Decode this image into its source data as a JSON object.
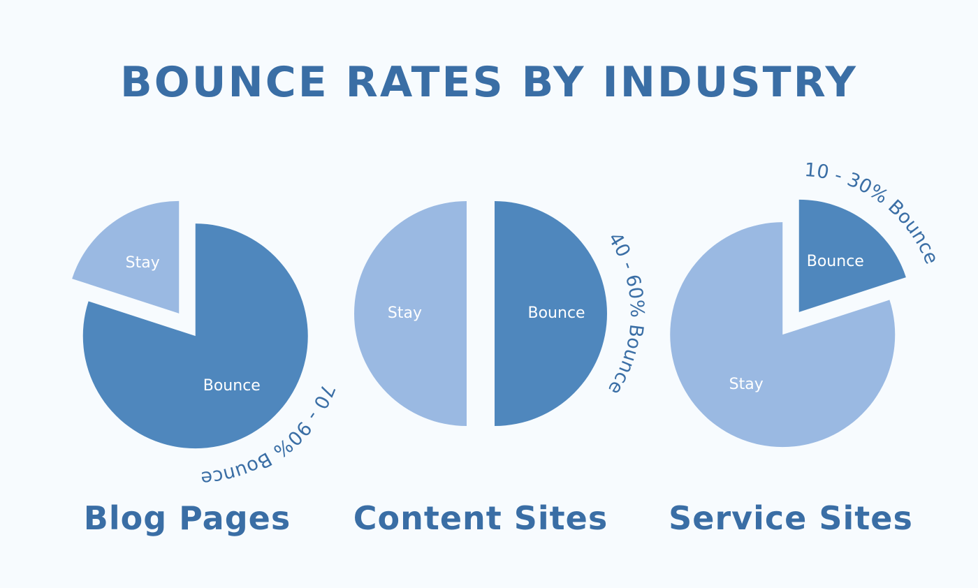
{
  "title": "BOUNCE RATES BY INDUSTRY",
  "chart_data": [
    {
      "type": "pie",
      "title": "Blog Pages",
      "categories": [
        "Bounce",
        "Stay"
      ],
      "values": [
        80,
        20
      ],
      "colors": [
        "#4f87bd",
        "#9ab9e2"
      ],
      "annotation": "70 - 90% Bounce"
    },
    {
      "type": "pie",
      "title": "Content Sites",
      "categories": [
        "Bounce",
        "Stay"
      ],
      "values": [
        50,
        50
      ],
      "colors": [
        "#4f87bd",
        "#9ab9e2"
      ],
      "annotation": "40 - 60% Bounce"
    },
    {
      "type": "pie",
      "title": "Service Sites",
      "categories": [
        "Bounce",
        "Stay"
      ],
      "values": [
        20,
        80
      ],
      "colors": [
        "#4f87bd",
        "#9ab9e2"
      ],
      "annotation": "10 - 30% Bounce"
    }
  ]
}
